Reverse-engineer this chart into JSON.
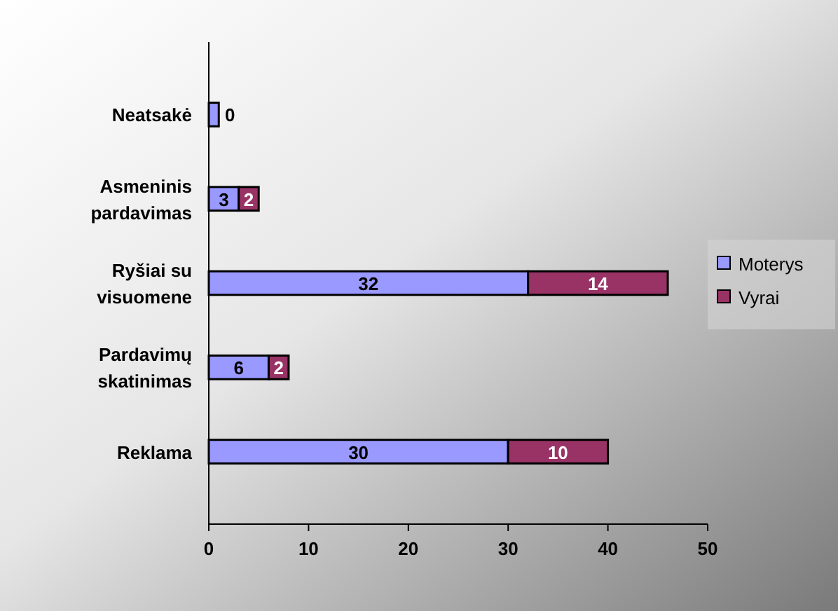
{
  "chart_data": {
    "type": "bar",
    "orientation": "horizontal",
    "stacked": true,
    "categories": [
      "Neatsakė",
      "Asmeninis\npardavimas",
      "Ryšiai su\nvisuomene",
      "Pardavimų\nskatinimas",
      "Reklama"
    ],
    "series": [
      {
        "name": "Moterys",
        "color": "#9999ff",
        "values": [
          1,
          3,
          32,
          6,
          30
        ],
        "value_labels": [
          null,
          "3",
          "32",
          "6",
          "30"
        ]
      },
      {
        "name": "Vyrai",
        "color": "#993366",
        "values": [
          0,
          2,
          14,
          2,
          10
        ],
        "value_labels": [
          "0",
          "2",
          "14",
          "2",
          "10"
        ]
      }
    ],
    "xlim": [
      0,
      50
    ],
    "xticks": [
      0,
      10,
      20,
      30,
      40,
      50
    ],
    "legend": "right"
  }
}
